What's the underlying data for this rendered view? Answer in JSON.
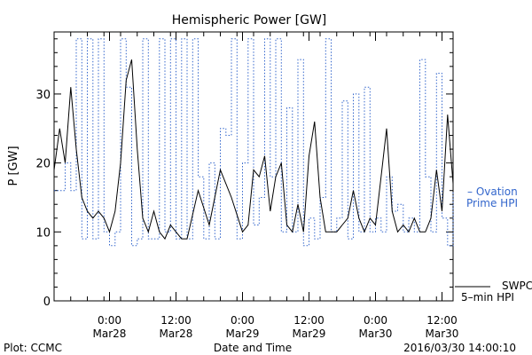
{
  "chart_data": {
    "type": "line",
    "title": "Hemispheric Power [GW]",
    "xlabel": "Date and Time",
    "ylabel": "P [GW]",
    "ylim": [
      0,
      39
    ],
    "yticks": [
      0,
      10,
      20,
      30
    ],
    "xlim": [
      "2016-03-27T14:00",
      "2016-03-30T14:00"
    ],
    "xtick_labels": [
      {
        "t": "2016-03-28T00:00",
        "line1": "0:00",
        "line2": "Mar28"
      },
      {
        "t": "2016-03-28T12:00",
        "line1": "12:00",
        "line2": "Mar28"
      },
      {
        "t": "2016-03-29T00:00",
        "line1": "0:00",
        "line2": "Mar29"
      },
      {
        "t": "2016-03-29T12:00",
        "line1": "12:00",
        "line2": "Mar29"
      },
      {
        "t": "2016-03-30T00:00",
        "line1": "0:00",
        "line2": "Mar30"
      },
      {
        "t": "2016-03-30T12:00",
        "line1": "12:00",
        "line2": "Mar30"
      }
    ],
    "minor_ticks_hours": 3,
    "grid": false,
    "series": [
      {
        "name": "SWPC 5-min HPI",
        "color": "#000000",
        "style": "solid",
        "x": [
          "2016-03-27T14:00",
          "2016-03-27T15:00",
          "2016-03-27T16:00",
          "2016-03-27T17:00",
          "2016-03-27T18:00",
          "2016-03-27T19:00",
          "2016-03-27T20:00",
          "2016-03-27T21:00",
          "2016-03-27T22:00",
          "2016-03-27T23:00",
          "2016-03-28T00:00",
          "2016-03-28T01:00",
          "2016-03-28T02:00",
          "2016-03-28T03:00",
          "2016-03-28T04:00",
          "2016-03-28T05:00",
          "2016-03-28T06:00",
          "2016-03-28T07:00",
          "2016-03-28T08:00",
          "2016-03-28T09:00",
          "2016-03-28T10:00",
          "2016-03-28T11:00",
          "2016-03-28T12:00",
          "2016-03-28T13:00",
          "2016-03-28T14:00",
          "2016-03-28T16:00",
          "2016-03-28T18:00",
          "2016-03-28T20:00",
          "2016-03-28T22:00",
          "2016-03-29T00:00",
          "2016-03-29T01:00",
          "2016-03-29T02:00",
          "2016-03-29T03:00",
          "2016-03-29T04:00",
          "2016-03-29T05:00",
          "2016-03-29T06:00",
          "2016-03-29T07:00",
          "2016-03-29T08:00",
          "2016-03-29T09:00",
          "2016-03-29T10:00",
          "2016-03-29T11:00",
          "2016-03-29T12:00",
          "2016-03-29T13:00",
          "2016-03-29T14:00",
          "2016-03-29T15:00",
          "2016-03-29T16:00",
          "2016-03-29T17:00",
          "2016-03-29T18:00",
          "2016-03-29T19:00",
          "2016-03-29T20:00",
          "2016-03-29T21:00",
          "2016-03-29T22:00",
          "2016-03-29T23:00",
          "2016-03-30T00:00",
          "2016-03-30T01:00",
          "2016-03-30T02:00",
          "2016-03-30T03:00",
          "2016-03-30T04:00",
          "2016-03-30T05:00",
          "2016-03-30T06:00",
          "2016-03-30T07:00",
          "2016-03-30T08:00",
          "2016-03-30T09:00",
          "2016-03-30T10:00",
          "2016-03-30T11:00",
          "2016-03-30T12:00",
          "2016-03-30T13:00",
          "2016-03-30T14:00"
        ],
        "values": [
          19,
          25,
          20,
          31,
          22,
          15,
          13,
          12,
          13,
          12,
          10,
          13,
          20,
          32,
          35,
          22,
          12,
          10,
          13,
          10,
          9,
          11,
          10,
          9,
          9,
          16,
          11,
          19,
          15,
          10,
          11,
          19,
          18,
          21,
          13,
          18,
          20,
          11,
          10,
          14,
          10,
          21,
          26,
          15,
          10,
          10,
          10,
          11,
          12,
          16,
          12,
          10,
          12,
          11,
          18,
          25,
          13,
          10,
          11,
          10,
          12,
          10,
          10,
          12,
          19,
          13,
          27,
          17
        ]
      },
      {
        "name": "Ovation Prime HPI",
        "color": "#3366cc",
        "style": "dotted",
        "x": [
          "2016-03-27T14:00",
          "2016-03-27T15:00",
          "2016-03-27T16:00",
          "2016-03-27T17:00",
          "2016-03-27T18:00",
          "2016-03-27T19:00",
          "2016-03-27T20:00",
          "2016-03-27T21:00",
          "2016-03-27T22:00",
          "2016-03-27T23:00",
          "2016-03-28T00:00",
          "2016-03-28T01:00",
          "2016-03-28T02:00",
          "2016-03-28T03:00",
          "2016-03-28T04:00",
          "2016-03-28T05:00",
          "2016-03-28T06:00",
          "2016-03-28T07:00",
          "2016-03-28T08:00",
          "2016-03-28T09:00",
          "2016-03-28T10:00",
          "2016-03-28T11:00",
          "2016-03-28T12:00",
          "2016-03-28T13:00",
          "2016-03-28T14:00",
          "2016-03-28T15:00",
          "2016-03-28T16:00",
          "2016-03-28T17:00",
          "2016-03-28T18:00",
          "2016-03-28T19:00",
          "2016-03-28T20:00",
          "2016-03-28T21:00",
          "2016-03-28T22:00",
          "2016-03-28T23:00",
          "2016-03-29T00:00",
          "2016-03-29T01:00",
          "2016-03-29T02:00",
          "2016-03-29T03:00",
          "2016-03-29T04:00",
          "2016-03-29T05:00",
          "2016-03-29T06:00",
          "2016-03-29T07:00",
          "2016-03-29T08:00",
          "2016-03-29T09:00",
          "2016-03-29T10:00",
          "2016-03-29T11:00",
          "2016-03-29T12:00",
          "2016-03-29T13:00",
          "2016-03-29T14:00",
          "2016-03-29T15:00",
          "2016-03-29T16:00",
          "2016-03-29T17:00",
          "2016-03-29T18:00",
          "2016-03-29T19:00",
          "2016-03-29T20:00",
          "2016-03-29T21:00",
          "2016-03-29T22:00",
          "2016-03-29T23:00",
          "2016-03-30T00:00",
          "2016-03-30T01:00",
          "2016-03-30T02:00",
          "2016-03-30T03:00",
          "2016-03-30T04:00",
          "2016-03-30T05:00",
          "2016-03-30T06:00",
          "2016-03-30T07:00",
          "2016-03-30T08:00",
          "2016-03-30T09:00",
          "2016-03-30T10:00",
          "2016-03-30T11:00",
          "2016-03-30T12:00",
          "2016-03-30T13:00",
          "2016-03-30T14:00"
        ],
        "values": [
          16,
          16,
          20,
          16,
          38,
          9,
          38,
          9,
          38,
          10,
          8,
          10,
          38,
          31,
          8,
          9,
          38,
          9,
          9,
          38,
          10,
          38,
          9,
          38,
          9,
          38,
          18,
          9,
          20,
          9,
          25,
          24,
          38,
          9,
          20,
          38,
          11,
          15,
          38,
          18,
          38,
          10,
          28,
          10,
          35,
          8,
          12,
          9,
          15,
          38,
          10,
          12,
          29,
          9,
          30,
          10,
          31,
          10,
          12,
          10,
          18,
          13,
          14,
          10,
          12,
          10,
          35,
          18,
          10,
          33,
          12,
          8,
          16
        ]
      }
    ]
  },
  "legend": {
    "ovation_line1": "– Ovation",
    "ovation_line2": "Prime HPI",
    "swpc_line1": "SWPC",
    "swpc_line2": "5–min HPI"
  },
  "footer": {
    "left": "Plot: CCMC",
    "center": "Date and Time",
    "right": "2016/03/30 14:00:10"
  }
}
